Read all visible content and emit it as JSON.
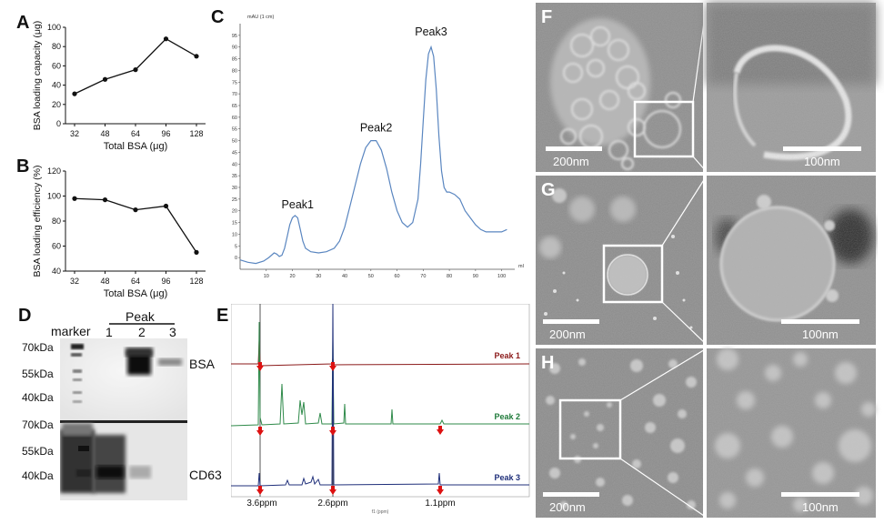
{
  "panels": {
    "A": {
      "letter": "A"
    },
    "B": {
      "letter": "B"
    },
    "C": {
      "letter": "C"
    },
    "D": {
      "letter": "D"
    },
    "E": {
      "letter": "E"
    },
    "F": {
      "letter": "F"
    },
    "G": {
      "letter": "G"
    },
    "H": {
      "letter": "H"
    }
  },
  "chart_data": [
    {
      "id": "A",
      "type": "line",
      "title": "",
      "xlabel": "Total BSA (μg)",
      "ylabel": "BSA loading capacity (μg)",
      "categories": [
        "32",
        "48",
        "64",
        "96",
        "128"
      ],
      "values": [
        31,
        46,
        56,
        88,
        70
      ],
      "ylim": [
        0,
        100
      ],
      "yticks": [
        "0",
        "20",
        "40",
        "60",
        "80",
        "100"
      ],
      "grid": false
    },
    {
      "id": "B",
      "type": "line",
      "title": "",
      "xlabel": "Total BSA (μg)",
      "ylabel": "BSA loading efficiency (%)",
      "categories": [
        "32",
        "48",
        "64",
        "96",
        "128"
      ],
      "values": [
        98,
        97,
        89,
        92,
        55
      ],
      "ylim": [
        40,
        120
      ],
      "yticks": [
        "40",
        "60",
        "80",
        "100",
        "120"
      ],
      "grid": false
    },
    {
      "id": "C",
      "type": "line",
      "title": "",
      "unit_label": "mAU (1 cm)",
      "xunit": "ml",
      "xlim": [
        0,
        105
      ],
      "ylim": [
        -5,
        100
      ],
      "xticks": [
        "10",
        "20",
        "30",
        "40",
        "50",
        "60",
        "70",
        "80",
        "90",
        "100"
      ],
      "yticks": [
        "0",
        "5",
        "10",
        "15",
        "20",
        "25",
        "30",
        "35",
        "40",
        "45",
        "50",
        "55",
        "60",
        "65",
        "70",
        "75",
        "80",
        "85",
        "90",
        "95"
      ],
      "x": [
        0,
        3,
        6,
        9,
        11,
        13,
        14,
        15,
        16,
        17,
        18,
        19,
        20,
        21,
        22,
        23,
        24,
        25,
        27,
        30,
        33,
        36,
        38,
        40,
        42,
        44,
        46,
        48,
        50,
        52,
        54,
        56,
        58,
        60,
        62,
        64,
        66,
        68,
        69,
        70,
        71,
        72,
        73,
        74,
        75,
        76,
        77,
        78,
        79,
        80,
        82,
        84,
        86,
        88,
        90,
        92,
        94,
        96,
        98,
        100,
        102
      ],
      "y": [
        -1,
        -2,
        -2.5,
        -1.5,
        0,
        2,
        1.5,
        0.5,
        1,
        4,
        9,
        14,
        17,
        18,
        17,
        12,
        7,
        4,
        2.5,
        2,
        2.5,
        4,
        7,
        13,
        22,
        31,
        40,
        47,
        50,
        50,
        46,
        38,
        28,
        20,
        15,
        13,
        15,
        25,
        40,
        58,
        76,
        87,
        90,
        86,
        72,
        52,
        37,
        30,
        28,
        28,
        27,
        25,
        20,
        17,
        14,
        12,
        11,
        11,
        11,
        11,
        12
      ],
      "annotations": [
        {
          "text": "Peak1",
          "x": 22,
          "y": 21
        },
        {
          "text": "Peak2",
          "x": 52,
          "y": 54
        },
        {
          "text": "Peak3",
          "x": 73,
          "y": 95
        }
      ],
      "grid": false
    }
  ],
  "panel_d": {
    "marker_label": "marker",
    "peak_label": "Peak",
    "lanes": [
      "1",
      "2",
      "3"
    ],
    "mw": [
      "70kDa",
      "55kDa",
      "40kDa",
      "70kDa",
      "55kDa",
      "40kDa"
    ],
    "proteins": [
      "BSA",
      "CD63"
    ]
  },
  "panel_e": {
    "series": [
      "Peak 1",
      "Peak 2",
      "Peak 3"
    ],
    "series_colors": [
      "#8b1a1a",
      "#1f7a3a",
      "#1f2f7a"
    ],
    "ppm_labels": [
      "3.6ppm",
      "2.6ppm",
      "1.1ppm"
    ],
    "axis_unit": "f1 (ppm)"
  },
  "panel_em": {
    "scale_200": "200nm",
    "scale_100": "100nm"
  }
}
